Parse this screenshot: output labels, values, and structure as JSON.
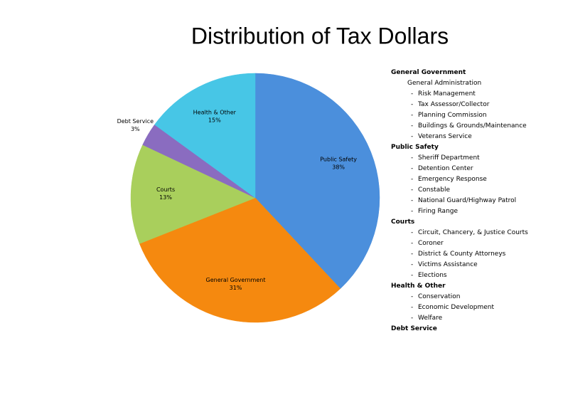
{
  "chart_data": {
    "type": "pie",
    "title": "Distribution of Tax Dollars",
    "categories": [
      "Public Safety",
      "General Government",
      "Courts",
      "Debt Service",
      "Health & Other"
    ],
    "values": [
      38,
      31,
      13,
      3,
      15
    ],
    "value_labels": [
      "38%",
      "31%",
      "13%",
      "3%",
      "15%"
    ],
    "colors": [
      "#4b8fdc",
      "#f5890f",
      "#a9cf5c",
      "#8a6cc0",
      "#47c6e6"
    ]
  },
  "sidebar": {
    "groups": [
      {
        "heading": "General Government",
        "subheading": "General Administration",
        "items": [
          "Risk Management",
          "Tax Assessor/Collector",
          "Planning Commission",
          "Buildings & Grounds/Maintenance",
          "Veterans Service"
        ]
      },
      {
        "heading": "Public Safety",
        "items": [
          "Sheriff Department",
          "Detention Center",
          "Emergency Response",
          "Constable",
          "National Guard/Highway Patrol",
          "Firing Range"
        ]
      },
      {
        "heading": "Courts",
        "items": [
          "Circuit, Chancery, & Justice Courts",
          "Coroner",
          "District & County Attorneys",
          "Victims Assistance",
          "Elections"
        ]
      },
      {
        "heading": "Health & Other",
        "items": [
          "Conservation",
          "Economic Development",
          "Welfare"
        ]
      },
      {
        "heading": "Debt Service"
      }
    ]
  }
}
